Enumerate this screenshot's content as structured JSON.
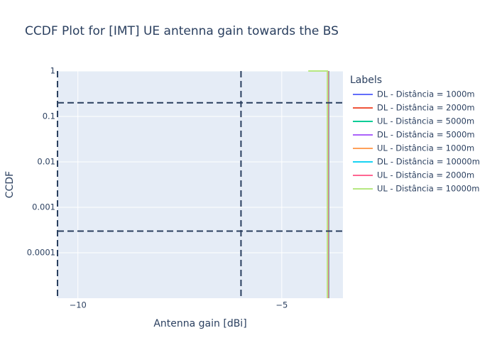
{
  "chart_data": {
    "type": "line",
    "title": "CCDF Plot for [IMT] UE antenna gain towards the BS",
    "x_label": "Antenna gain [dBi]",
    "y_label": "CCDF",
    "legend_title": "Labels",
    "log_y": true,
    "grid": true,
    "legend_position": "right",
    "xlim": [
      -10.5,
      -3.5
    ],
    "ylim": [
      1e-05,
      1
    ],
    "xticks": [
      {
        "value": -10,
        "label": "−10"
      },
      {
        "value": -5,
        "label": "−5"
      }
    ],
    "yticks": [
      1,
      0.1,
      0.01,
      0.001,
      0.0001
    ],
    "reference_y": [
      0.2,
      0.0003
    ],
    "reference_x": [
      -10.5,
      -6
    ],
    "series": [
      {
        "name": "DL - Distância = 1000m",
        "color": "#636efa",
        "x": [
          -3.86,
          -3.86
        ],
        "values": [
          1,
          1e-05
        ]
      },
      {
        "name": "DL - Distância = 2000m",
        "color": "#ef553b",
        "x": [
          -3.86,
          -3.86
        ],
        "values": [
          1,
          1e-05
        ]
      },
      {
        "name": "UL - Distância = 5000m",
        "color": "#00cc96",
        "x": [
          -3.85,
          -3.85
        ],
        "values": [
          1,
          1e-05
        ]
      },
      {
        "name": "DL - Distância = 5000m",
        "color": "#ab63fa",
        "x": [
          -3.86,
          -3.86
        ],
        "values": [
          1,
          1e-05
        ]
      },
      {
        "name": "UL - Distância = 1000m",
        "color": "#ffa15a",
        "x": [
          -3.86,
          -3.86
        ],
        "values": [
          1,
          1e-05
        ]
      },
      {
        "name": "DL - Distância = 10000m",
        "color": "#19d3f3",
        "x": [
          -3.86,
          -3.86
        ],
        "values": [
          1,
          1e-05
        ]
      },
      {
        "name": "UL - Distância = 2000m",
        "color": "#ff6692",
        "x": [
          -3.86,
          -3.86
        ],
        "values": [
          1,
          1e-05
        ]
      },
      {
        "name": "UL - Distância = 10000m",
        "color": "#b6e880",
        "x": [
          -4.35,
          -3.88,
          -3.88
        ],
        "values": [
          1,
          1,
          1e-05
        ]
      }
    ]
  }
}
